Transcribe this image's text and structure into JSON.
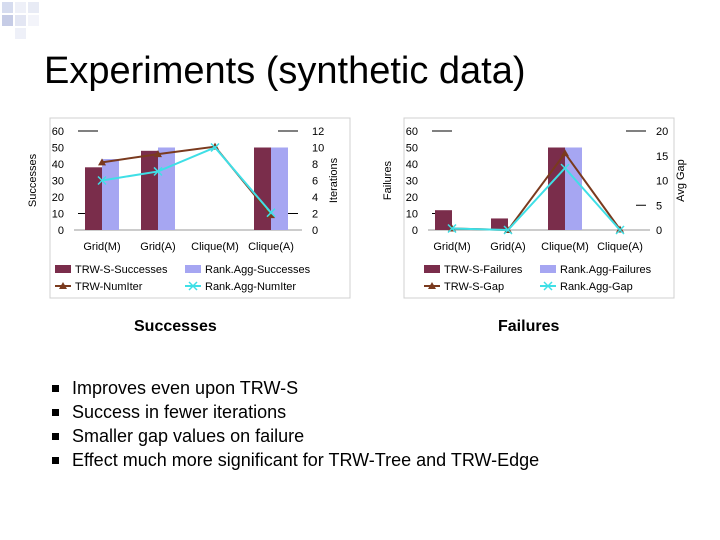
{
  "title": "Experiments (synthetic data)",
  "charts": {
    "left": {
      "caption": "Successes"
    },
    "right": {
      "caption": "Failures"
    }
  },
  "bullets": [
    "Improves even upon TRW-S",
    "Success in fewer iterations",
    "Smaller gap values on failure",
    "Effect much more significant for TRW-Tree and TRW-Edge"
  ],
  "colors": {
    "bar1": "#7a2d4b",
    "bar2": "#a6a6f2",
    "line1": "#7a3a1e",
    "line2": "#3fdfe6"
  },
  "chart_data": [
    {
      "type": "bar",
      "categories": [
        "Grid(M)",
        "Grid(A)",
        "Clique(M)",
        "Clique(A)"
      ],
      "ylabel": "Successes",
      "y2label": "Iterations",
      "ylim": [
        0,
        60
      ],
      "y2lim": [
        0,
        12
      ],
      "yticks": [
        0,
        10,
        20,
        30,
        40,
        50,
        60
      ],
      "y2ticks": [
        0,
        2,
        4,
        6,
        8,
        10,
        12
      ],
      "grid": false,
      "legend_position": "bottom",
      "series": [
        {
          "name": "TRW-S-Successes",
          "kind": "bar",
          "axis": "left",
          "values": [
            38,
            48,
            0,
            50
          ]
        },
        {
          "name": "Rank.Agg-Successes",
          "kind": "bar",
          "axis": "left",
          "values": [
            43,
            50,
            0,
            50
          ]
        },
        {
          "name": "TRW-NumIter",
          "kind": "line",
          "axis": "right",
          "marker": "triangle",
          "values": [
            8.2,
            9.2,
            10.1,
            1.8
          ]
        },
        {
          "name": "Rank.Agg-NumIter",
          "kind": "line",
          "axis": "right",
          "marker": "x",
          "values": [
            6.0,
            7.1,
            10.0,
            2.1
          ]
        }
      ]
    },
    {
      "type": "bar",
      "categories": [
        "Grid(M)",
        "Grid(A)",
        "Clique(M)",
        "Clique(A)"
      ],
      "ylabel": "Failures",
      "y2label": "Avg Gap",
      "ylim": [
        0,
        60
      ],
      "y2lim": [
        0,
        20
      ],
      "yticks": [
        0,
        10,
        20,
        30,
        40,
        50,
        60
      ],
      "y2ticks": [
        0,
        5,
        10,
        15,
        20
      ],
      "grid": false,
      "legend_position": "bottom",
      "series": [
        {
          "name": "TRW-S-Failures",
          "kind": "bar",
          "axis": "left",
          "values": [
            12,
            7,
            50,
            0
          ]
        },
        {
          "name": "Rank.Agg-Failures",
          "kind": "bar",
          "axis": "left",
          "values": [
            0,
            0,
            50,
            0
          ]
        },
        {
          "name": "TRW-S-Gap",
          "kind": "line",
          "axis": "right",
          "marker": "triangle",
          "values": [
            0.3,
            0.0,
            15.5,
            0.1
          ]
        },
        {
          "name": "Rank.Agg-Gap",
          "kind": "line",
          "axis": "right",
          "marker": "x",
          "values": [
            0.3,
            0.0,
            12.5,
            0.0
          ]
        }
      ]
    }
  ]
}
